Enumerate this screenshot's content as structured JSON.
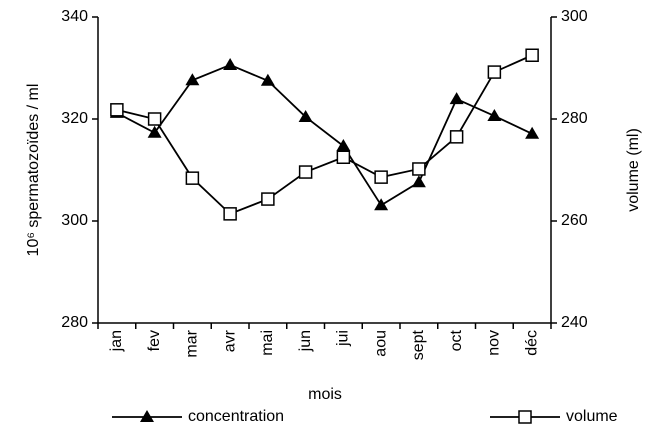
{
  "chart_data": {
    "type": "line",
    "x_label": "mois",
    "y_label": "10⁶ spermatozoïdes / ml",
    "y2_label": "volume (ml)",
    "categories": [
      "jan",
      "fev",
      "mar",
      "avr",
      "mai",
      "jun",
      "jui",
      "aou",
      "sept",
      "oct",
      "nov",
      "déc"
    ],
    "series": [
      {
        "name": "concentration",
        "color": "#000000",
        "marker": "triangle",
        "values": [
          321.2,
          317.3,
          327.6,
          330.6,
          327.5,
          320.4,
          314.7,
          303.1,
          307.6,
          323.9,
          320.6,
          317.1
        ]
      },
      {
        "name": "volume",
        "color": "#000000",
        "marker": "square",
        "axis": "y2",
        "values": [
          281.8,
          280,
          268.4,
          261.4,
          264.3,
          269.6,
          272.5,
          268.6,
          270.2,
          276.5,
          289.2,
          292.5
        ]
      }
    ],
    "ylim": [
      280,
      340
    ],
    "yticks": [
      280,
      300,
      320,
      340
    ],
    "y2lim": [
      240,
      300
    ],
    "y2ticks": [
      240,
      260,
      280,
      300
    ],
    "grid": false,
    "legend": "bottom"
  }
}
